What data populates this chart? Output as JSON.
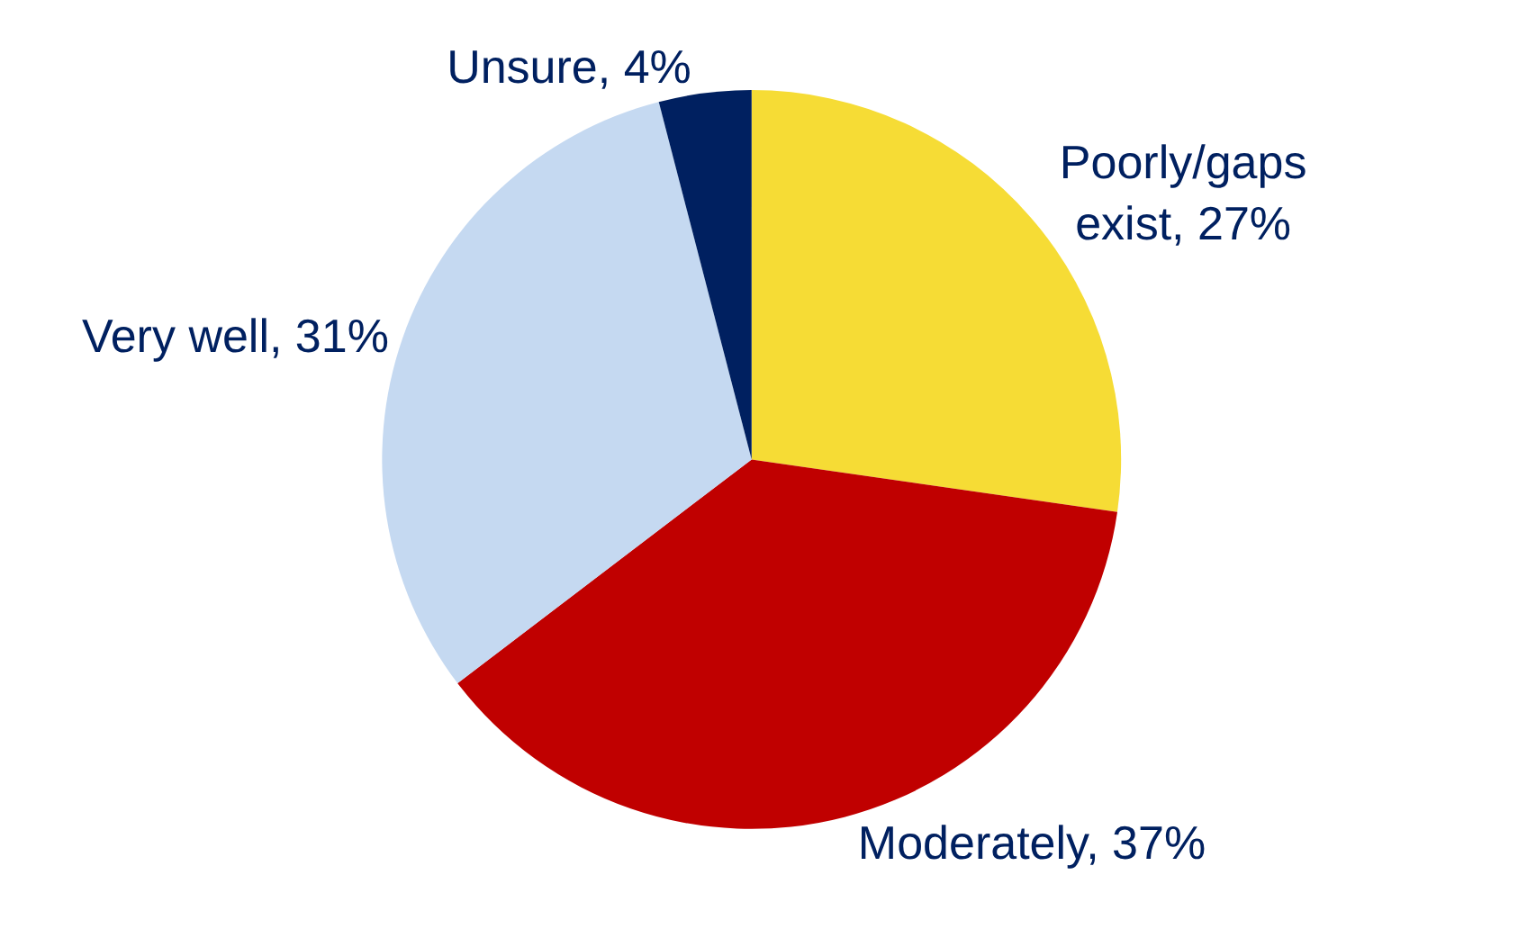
{
  "chart_data": {
    "type": "pie",
    "categories": [
      "Poorly/gaps exist",
      "Moderately",
      "Very well",
      "Unsure"
    ],
    "values": [
      27,
      37,
      31,
      4
    ],
    "colors": [
      "#f6dc35",
      "#c00000",
      "#c5d9f1",
      "#002060"
    ],
    "value_labels": [
      "27%",
      "37%",
      "31%",
      "4%"
    ],
    "legend": false
  }
}
